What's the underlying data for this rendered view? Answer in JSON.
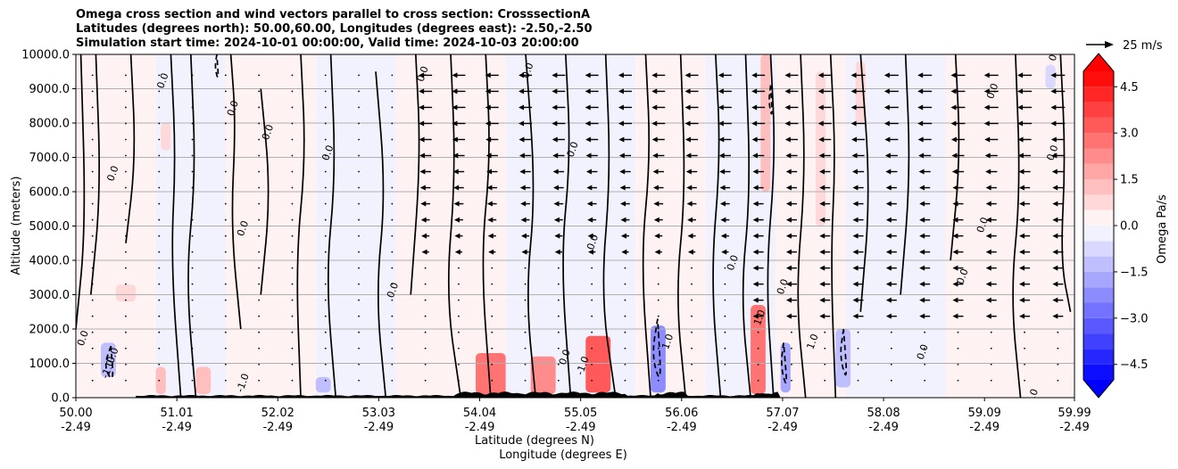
{
  "chart_data": {
    "type": "heatmap",
    "title_lines": [
      "Omega cross section and wind vectors parallel to cross section: CrosssectionA",
      "Latitudes (degrees north): 50.00,60.00, Longitudes (degrees east): -2.50,-2.50",
      "Simulation start time: 2024-10-01 00:00:00, Valid time: 2024-10-03 20:00:00"
    ],
    "ylabel": "Altitude (meters)",
    "xlabel_lines": [
      "Latitude (degrees N)",
      "Longitude (degrees E)"
    ],
    "xlim": [
      50.0,
      59.99
    ],
    "ylim": [
      0,
      10000
    ],
    "grid": "horizontal",
    "x_ticks": [
      {
        "value": 50.0,
        "lat": "50.00",
        "lon": "-2.49"
      },
      {
        "value": 51.01,
        "lat": "51.01",
        "lon": "-2.49"
      },
      {
        "value": 52.02,
        "lat": "52.02",
        "lon": "-2.49"
      },
      {
        "value": 53.03,
        "lat": "53.03",
        "lon": "-2.49"
      },
      {
        "value": 54.04,
        "lat": "54.04",
        "lon": "-2.49"
      },
      {
        "value": 55.05,
        "lat": "55.05",
        "lon": "-2.49"
      },
      {
        "value": 56.06,
        "lat": "56.06",
        "lon": "-2.49"
      },
      {
        "value": 57.07,
        "lat": "57.07",
        "lon": "-2.49"
      },
      {
        "value": 58.08,
        "lat": "58.08",
        "lon": "-2.49"
      },
      {
        "value": 59.09,
        "lat": "59.09",
        "lon": "-2.49"
      },
      {
        "value": 59.99,
        "lat": "59.99",
        "lon": "-2.49"
      }
    ],
    "y_ticks": [
      {
        "value": 0,
        "label": "0.0"
      },
      {
        "value": 1000,
        "label": "1000.0"
      },
      {
        "value": 2000,
        "label": "2000.0"
      },
      {
        "value": 3000,
        "label": "3000.0"
      },
      {
        "value": 4000,
        "label": "4000.0"
      },
      {
        "value": 5000,
        "label": "5000.0"
      },
      {
        "value": 6000,
        "label": "6000.0"
      },
      {
        "value": 7000,
        "label": "7000.0"
      },
      {
        "value": 8000,
        "label": "8000.0"
      },
      {
        "value": 9000,
        "label": "9000.0"
      },
      {
        "value": 10000,
        "label": "10000.0"
      }
    ],
    "colorbar": {
      "label": "Omega Pa/s",
      "range": [
        -5.0,
        5.0
      ],
      "ticks": [
        {
          "value": 4.5,
          "label": "4.5"
        },
        {
          "value": 3.0,
          "label": "3.0"
        },
        {
          "value": 1.5,
          "label": "1.5"
        },
        {
          "value": 0.0,
          "label": "0.0"
        },
        {
          "value": -1.5,
          "label": "−1.5"
        },
        {
          "value": -3.0,
          "label": "−3.0"
        },
        {
          "value": -4.5,
          "label": "−4.5"
        }
      ],
      "levels": 20,
      "extend": "both",
      "colormap": "bwr"
    },
    "quiver_key": {
      "value": 25,
      "label": "25 m/s"
    },
    "contour_labels": [
      "0.0",
      "-1.0",
      "1.0"
    ],
    "omega_cells": [
      {
        "x0": 50.0,
        "x1": 50.8,
        "y0": 0,
        "y1": 10000,
        "value": 0.2
      },
      {
        "x0": 50.8,
        "x1": 51.5,
        "y0": 0,
        "y1": 10000,
        "value": -0.3
      },
      {
        "x0": 51.5,
        "x1": 52.4,
        "y0": 0,
        "y1": 10000,
        "value": 0.3
      },
      {
        "x0": 52.4,
        "x1": 53.2,
        "y0": 0,
        "y1": 10000,
        "value": -0.2
      },
      {
        "x0": 53.2,
        "x1": 54.3,
        "y0": 0,
        "y1": 10000,
        "value": 0.3
      },
      {
        "x0": 54.3,
        "x1": 55.6,
        "y0": 0,
        "y1": 10000,
        "value": -0.2
      },
      {
        "x0": 55.6,
        "x1": 56.3,
        "y0": 0,
        "y1": 10000,
        "value": 0.3
      },
      {
        "x0": 56.3,
        "x1": 57.0,
        "y0": 0,
        "y1": 10000,
        "value": -0.3
      },
      {
        "x0": 57.0,
        "x1": 57.7,
        "y0": 0,
        "y1": 10000,
        "value": 0.3
      },
      {
        "x0": 57.7,
        "x1": 58.7,
        "y0": 0,
        "y1": 10000,
        "value": -0.3
      },
      {
        "x0": 58.7,
        "x1": 59.99,
        "y0": 0,
        "y1": 10000,
        "value": 0.2
      },
      {
        "x0": 50.85,
        "x1": 50.95,
        "y0": 7200,
        "y1": 8000,
        "value": 0.8
      },
      {
        "x0": 50.4,
        "x1": 50.6,
        "y0": 2800,
        "y1": 3300,
        "value": 0.9
      },
      {
        "x0": 50.25,
        "x1": 50.4,
        "y0": 600,
        "y1": 1600,
        "value": -1.2
      },
      {
        "x0": 50.8,
        "x1": 50.9,
        "y0": 100,
        "y1": 900,
        "value": 1.3
      },
      {
        "x0": 51.2,
        "x1": 51.35,
        "y0": 100,
        "y1": 900,
        "value": 1.3
      },
      {
        "x0": 52.4,
        "x1": 52.55,
        "y0": 150,
        "y1": 600,
        "value": -1.3
      },
      {
        "x0": 54.0,
        "x1": 54.3,
        "y0": 100,
        "y1": 1300,
        "value": 2.8
      },
      {
        "x0": 54.55,
        "x1": 54.8,
        "y0": 100,
        "y1": 1200,
        "value": 2.0
      },
      {
        "x0": 55.1,
        "x1": 55.35,
        "y0": 150,
        "y1": 1800,
        "value": 3.2
      },
      {
        "x0": 55.75,
        "x1": 55.9,
        "y0": 150,
        "y1": 2100,
        "value": -2.2
      },
      {
        "x0": 56.75,
        "x1": 56.9,
        "y0": 100,
        "y1": 2700,
        "value": 2.6
      },
      {
        "x0": 57.05,
        "x1": 57.15,
        "y0": 150,
        "y1": 1600,
        "value": -1.6
      },
      {
        "x0": 57.6,
        "x1": 57.75,
        "y0": 300,
        "y1": 2000,
        "value": -1.4
      },
      {
        "x0": 56.85,
        "x1": 56.95,
        "y0": 6000,
        "y1": 10000,
        "value": 1.0
      },
      {
        "x0": 57.4,
        "x1": 57.5,
        "y0": 5000,
        "y1": 9500,
        "value": 0.8
      },
      {
        "x0": 57.8,
        "x1": 57.9,
        "y0": 8000,
        "y1": 9800,
        "value": 0.9
      },
      {
        "x0": 59.7,
        "x1": 59.8,
        "y0": 9000,
        "y1": 9700,
        "value": -0.9
      }
    ],
    "contours_zero": [
      {
        "x": [
          50.05,
          50.1,
          50.0
        ],
        "y": [
          10000,
          5000,
          2000
        ]
      },
      {
        "x": [
          50.2,
          50.25,
          50.15
        ],
        "y": [
          10000,
          6000,
          3000
        ]
      },
      {
        "x": [
          50.55,
          50.6,
          50.5
        ],
        "y": [
          10000,
          7000,
          4500
        ]
      },
      {
        "x": [
          50.95,
          51.0,
          50.95,
          51.05
        ],
        "y": [
          10000,
          7000,
          4000,
          0
        ]
      },
      {
        "x": [
          51.15,
          51.2,
          51.1,
          51.2
        ],
        "y": [
          10000,
          6500,
          3500,
          0
        ]
      },
      {
        "x": [
          51.55,
          51.6,
          51.55,
          51.65
        ],
        "y": [
          10000,
          8000,
          5000,
          2000
        ]
      },
      {
        "x": [
          51.85,
          51.95,
          51.85
        ],
        "y": [
          9000,
          6000,
          3000
        ]
      },
      {
        "x": [
          52.25,
          52.3,
          52.2,
          52.25
        ],
        "y": [
          10000,
          7000,
          4000,
          0
        ]
      },
      {
        "x": [
          52.55,
          52.6,
          52.5,
          52.6
        ],
        "y": [
          10000,
          6500,
          3500,
          0
        ]
      },
      {
        "x": [
          53.0,
          53.1,
          53.0,
          53.1
        ],
        "y": [
          9500,
          6000,
          3000,
          0
        ]
      },
      {
        "x": [
          53.4,
          53.45,
          53.35
        ],
        "y": [
          10000,
          7000,
          3000
        ]
      },
      {
        "x": [
          53.75,
          53.8,
          53.7,
          53.85
        ],
        "y": [
          10000,
          6500,
          3000,
          0
        ]
      },
      {
        "x": [
          54.1,
          54.15,
          54.05,
          54.15
        ],
        "y": [
          10000,
          7000,
          4000,
          0
        ]
      },
      {
        "x": [
          54.5,
          54.6,
          54.5,
          54.6
        ],
        "y": [
          10000,
          6000,
          3000,
          0
        ]
      },
      {
        "x": [
          54.9,
          54.95,
          54.85,
          54.95
        ],
        "y": [
          10000,
          7000,
          4000,
          0
        ]
      },
      {
        "x": [
          55.3,
          55.35,
          55.25,
          55.4
        ],
        "y": [
          10000,
          6500,
          3000,
          0
        ]
      },
      {
        "x": [
          55.7,
          55.75,
          55.65,
          55.75
        ],
        "y": [
          10000,
          7000,
          4000,
          0
        ]
      },
      {
        "x": [
          56.05,
          56.1,
          56.0,
          56.1
        ],
        "y": [
          10000,
          6000,
          3000,
          0
        ]
      },
      {
        "x": [
          56.4,
          56.45,
          56.35,
          56.45
        ],
        "y": [
          10000,
          7000,
          3500,
          0
        ]
      },
      {
        "x": [
          56.7,
          56.75,
          56.65,
          56.75
        ],
        "y": [
          10000,
          6000,
          3000,
          0
        ]
      },
      {
        "x": [
          56.95,
          57.0,
          56.9,
          56.98
        ],
        "y": [
          10000,
          7000,
          3500,
          0
        ]
      },
      {
        "x": [
          57.25,
          57.3,
          57.2,
          57.3
        ],
        "y": [
          10000,
          6500,
          3000,
          0
        ]
      },
      {
        "x": [
          57.55,
          57.6,
          57.55,
          57.6
        ],
        "y": [
          10000,
          7000,
          4000,
          0
        ]
      },
      {
        "x": [
          57.85,
          57.95,
          57.85
        ],
        "y": [
          10000,
          6000,
          2500
        ]
      },
      {
        "x": [
          58.3,
          58.35,
          58.25
        ],
        "y": [
          10000,
          6500,
          3000
        ]
      },
      {
        "x": [
          58.8,
          58.85,
          58.75
        ],
        "y": [
          10000,
          7000,
          4000
        ]
      },
      {
        "x": [
          59.4,
          59.45,
          59.35,
          59.45
        ],
        "y": [
          10000,
          6000,
          3000,
          0
        ]
      },
      {
        "x": [
          59.85,
          59.9,
          59.85,
          59.95
        ],
        "y": [
          10000,
          7000,
          4000,
          2500
        ]
      }
    ],
    "contours_neg": [
      {
        "x": [
          50.35,
          50.28,
          50.38,
          50.35
        ],
        "y": [
          1500,
          900,
          400,
          1500
        ]
      },
      {
        "x": [
          55.82,
          55.76,
          55.86,
          55.82
        ],
        "y": [
          2300,
          1200,
          300,
          2300
        ]
      },
      {
        "x": [
          57.08,
          57.05,
          57.12,
          57.08
        ],
        "y": [
          1600,
          900,
          200,
          1600
        ]
      },
      {
        "x": [
          57.68,
          57.64,
          57.72,
          57.68
        ],
        "y": [
          2000,
          1200,
          400,
          2000
        ]
      },
      {
        "x": [
          51.41,
          51.39,
          51.43,
          51.41
        ],
        "y": [
          10000,
          9600,
          9200,
          10000
        ]
      },
      {
        "x": [
          56.95,
          56.93,
          56.97,
          56.95
        ],
        "y": [
          9100,
          8600,
          8100,
          9100
        ]
      }
    ],
    "contour_label_marks": [
      {
        "x": 50.9,
        "y": 9200,
        "text": "0.0"
      },
      {
        "x": 51.6,
        "y": 8400,
        "text": "0.0"
      },
      {
        "x": 50.4,
        "y": 6500,
        "text": "0.0"
      },
      {
        "x": 51.95,
        "y": 7700,
        "text": "0.0"
      },
      {
        "x": 52.55,
        "y": 7100,
        "text": "0.0"
      },
      {
        "x": 51.7,
        "y": 4900,
        "text": "0.0"
      },
      {
        "x": 53.5,
        "y": 9400,
        "text": "0.0"
      },
      {
        "x": 54.55,
        "y": 9500,
        "text": "0.0"
      },
      {
        "x": 55.0,
        "y": 7200,
        "text": "0.0"
      },
      {
        "x": 55.2,
        "y": 4500,
        "text": "0.0"
      },
      {
        "x": 53.2,
        "y": 3100,
        "text": "0.0"
      },
      {
        "x": 56.6,
        "y": 3900,
        "text": "0.0"
      },
      {
        "x": 57.1,
        "y": 3200,
        "text": "0.0"
      },
      {
        "x": 58.9,
        "y": 3500,
        "text": "0.0"
      },
      {
        "x": 59.1,
        "y": 5000,
        "text": "0.0"
      },
      {
        "x": 59.8,
        "y": 7100,
        "text": "0.0"
      },
      {
        "x": 59.2,
        "y": 8900,
        "text": "0.0"
      },
      {
        "x": 59.82,
        "y": 10000,
        "text": "0.0"
      },
      {
        "x": 50.1,
        "y": 1700,
        "text": "0.0"
      },
      {
        "x": 50.4,
        "y": 1200,
        "text": "0.0"
      },
      {
        "x": 50.35,
        "y": 800,
        "text": "-1.0"
      },
      {
        "x": 51.7,
        "y": 400,
        "text": "-1.0"
      },
      {
        "x": 55.1,
        "y": 900,
        "text": "-1.0"
      },
      {
        "x": 54.92,
        "y": 1150,
        "text": "0.0"
      },
      {
        "x": 55.95,
        "y": 1600,
        "text": "1.0"
      },
      {
        "x": 56.87,
        "y": 2300,
        "text": "1.0"
      },
      {
        "x": 57.4,
        "y": 1600,
        "text": "1.0"
      },
      {
        "x": 58.5,
        "y": 1300,
        "text": "0.0"
      },
      {
        "x": 59.6,
        "y": 0,
        "text": "0.0"
      }
    ]
  }
}
